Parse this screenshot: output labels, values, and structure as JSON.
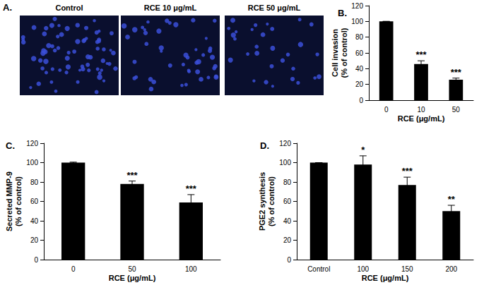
{
  "panel_a": {
    "label": "A.",
    "images": [
      "Control",
      "RCE 10 μg/mL",
      "RCE 50 μg/mL"
    ]
  },
  "chart_data": [
    {
      "type": "bar",
      "panel": "B.",
      "y_label": "Cell invasion (% of control)",
      "x_label": "RCE (μg/mL)",
      "categories": [
        "0",
        "10",
        "50"
      ],
      "values": [
        100,
        46,
        26
      ],
      "errors": [
        0,
        4,
        2
      ],
      "significance": [
        null,
        "***",
        "***"
      ],
      "color": "#000000",
      "ylim": [
        0,
        120
      ],
      "yticks": [
        0,
        20,
        40,
        60,
        80,
        100,
        120
      ],
      "grid": false
    },
    {
      "type": "bar",
      "panel": "C.",
      "y_label": "Secreted MMP-9 (% of control)",
      "x_label": "RCE (μg/mL)",
      "categories": [
        "0",
        "50",
        "100"
      ],
      "values": [
        100,
        78,
        59
      ],
      "errors": [
        0.5,
        3,
        8
      ],
      "significance": [
        null,
        "***",
        "***"
      ],
      "color": "#000000",
      "ylim": [
        0,
        120
      ],
      "yticks": [
        0,
        20,
        40,
        60,
        80,
        100,
        120
      ],
      "grid": false
    },
    {
      "type": "bar",
      "panel": "D.",
      "y_label": "PGE2 synthesis (% of control)",
      "x_label": "RCE (μg/mL)",
      "categories": [
        "Control",
        "100",
        "150",
        "200"
      ],
      "values": [
        100,
        98,
        77,
        50
      ],
      "errors": [
        0,
        9,
        8,
        6
      ],
      "significance": [
        null,
        "*",
        "***",
        "**"
      ],
      "color": "#000000",
      "ylim": [
        0,
        120
      ],
      "yticks": [
        0,
        20,
        40,
        60,
        80,
        100,
        120
      ],
      "grid": false
    }
  ]
}
